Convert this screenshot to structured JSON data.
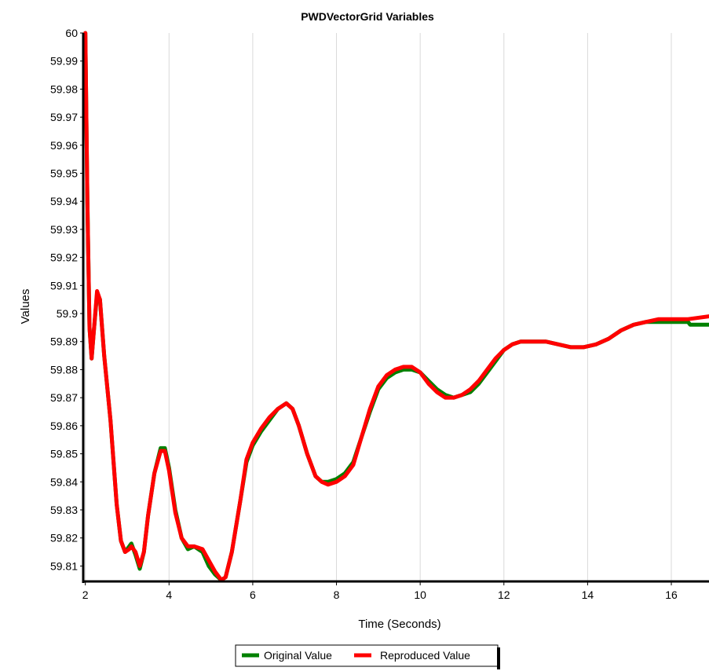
{
  "chart_data": {
    "type": "line",
    "title": "PWDVectorGrid Variables",
    "xlabel": "Time (Seconds)",
    "ylabel": "Values",
    "xlim": [
      1.95,
      16.9
    ],
    "ylim": [
      59.8045,
      60.0
    ],
    "x_ticks": [
      "2",
      "4",
      "6",
      "8",
      "10",
      "12",
      "14",
      "16"
    ],
    "y_ticks": [
      "59.81",
      "59.82",
      "59.83",
      "59.84",
      "59.85",
      "59.86",
      "59.87",
      "59.88",
      "59.89",
      "59.9",
      "59.91",
      "59.92",
      "59.93",
      "59.94",
      "59.95",
      "59.96",
      "59.97",
      "59.98",
      "59.99",
      "60"
    ],
    "grid": "vertical",
    "legend": "bottom-center",
    "series": [
      {
        "name": "Original Value",
        "color": "#008000",
        "points": [
          [
            2.0,
            60.0
          ],
          [
            2.05,
            59.94
          ],
          [
            2.1,
            59.895
          ],
          [
            2.15,
            59.884
          ],
          [
            2.2,
            59.893
          ],
          [
            2.28,
            59.907
          ],
          [
            2.35,
            59.905
          ],
          [
            2.45,
            59.885
          ],
          [
            2.6,
            59.862
          ],
          [
            2.75,
            59.832
          ],
          [
            2.85,
            59.819
          ],
          [
            2.95,
            59.815
          ],
          [
            3.05,
            59.817
          ],
          [
            3.1,
            59.818
          ],
          [
            3.2,
            59.814
          ],
          [
            3.3,
            59.809
          ],
          [
            3.4,
            59.815
          ],
          [
            3.5,
            59.828
          ],
          [
            3.65,
            59.843
          ],
          [
            3.8,
            59.852
          ],
          [
            3.9,
            59.852
          ],
          [
            4.0,
            59.845
          ],
          [
            4.15,
            59.83
          ],
          [
            4.3,
            59.82
          ],
          [
            4.45,
            59.816
          ],
          [
            4.6,
            59.817
          ],
          [
            4.8,
            59.815
          ],
          [
            4.95,
            59.81
          ],
          [
            5.1,
            59.807
          ],
          [
            5.25,
            59.805
          ],
          [
            5.35,
            59.806
          ],
          [
            5.5,
            59.815
          ],
          [
            5.7,
            59.833
          ],
          [
            5.85,
            59.847
          ],
          [
            6.0,
            59.853
          ],
          [
            6.2,
            59.858
          ],
          [
            6.4,
            59.862
          ],
          [
            6.6,
            59.866
          ],
          [
            6.8,
            59.868
          ],
          [
            6.95,
            59.866
          ],
          [
            7.1,
            59.86
          ],
          [
            7.3,
            59.85
          ],
          [
            7.5,
            59.842
          ],
          [
            7.65,
            59.84
          ],
          [
            7.8,
            59.84
          ],
          [
            8.0,
            59.841
          ],
          [
            8.2,
            59.843
          ],
          [
            8.4,
            59.847
          ],
          [
            8.6,
            59.856
          ],
          [
            8.8,
            59.865
          ],
          [
            9.0,
            59.873
          ],
          [
            9.2,
            59.877
          ],
          [
            9.4,
            59.879
          ],
          [
            9.6,
            59.88
          ],
          [
            9.8,
            59.88
          ],
          [
            10.0,
            59.879
          ],
          [
            10.2,
            59.876
          ],
          [
            10.4,
            59.873
          ],
          [
            10.6,
            59.871
          ],
          [
            10.8,
            59.87
          ],
          [
            11.0,
            59.871
          ],
          [
            11.2,
            59.872
          ],
          [
            11.4,
            59.875
          ],
          [
            11.6,
            59.879
          ],
          [
            11.8,
            59.883
          ],
          [
            12.0,
            59.887
          ],
          [
            12.2,
            59.889
          ],
          [
            12.4,
            59.89
          ],
          [
            12.8,
            59.89
          ],
          [
            13.0,
            59.89
          ],
          [
            13.3,
            59.889
          ],
          [
            13.6,
            59.888
          ],
          [
            13.9,
            59.888
          ],
          [
            14.2,
            59.889
          ],
          [
            14.5,
            59.891
          ],
          [
            14.8,
            59.894
          ],
          [
            15.1,
            59.896
          ],
          [
            15.4,
            59.897
          ],
          [
            15.7,
            59.897
          ],
          [
            16.0,
            59.897
          ],
          [
            16.4,
            59.897
          ],
          [
            16.45,
            59.896
          ],
          [
            16.9,
            59.896
          ]
        ]
      },
      {
        "name": "Reproduced Value",
        "color": "#ff0000",
        "points": [
          [
            2.0,
            60.0
          ],
          [
            2.05,
            59.94
          ],
          [
            2.1,
            59.895
          ],
          [
            2.15,
            59.884
          ],
          [
            2.2,
            59.893
          ],
          [
            2.28,
            59.908
          ],
          [
            2.35,
            59.905
          ],
          [
            2.45,
            59.885
          ],
          [
            2.6,
            59.862
          ],
          [
            2.75,
            59.832
          ],
          [
            2.85,
            59.819
          ],
          [
            2.95,
            59.815
          ],
          [
            3.05,
            59.816
          ],
          [
            3.1,
            59.817
          ],
          [
            3.2,
            59.815
          ],
          [
            3.3,
            59.81
          ],
          [
            3.4,
            59.815
          ],
          [
            3.5,
            59.828
          ],
          [
            3.65,
            59.843
          ],
          [
            3.8,
            59.851
          ],
          [
            3.9,
            59.851
          ],
          [
            4.0,
            59.844
          ],
          [
            4.15,
            59.829
          ],
          [
            4.3,
            59.82
          ],
          [
            4.45,
            59.817
          ],
          [
            4.6,
            59.817
          ],
          [
            4.8,
            59.816
          ],
          [
            4.95,
            59.812
          ],
          [
            5.1,
            59.808
          ],
          [
            5.25,
            59.805
          ],
          [
            5.35,
            59.806
          ],
          [
            5.5,
            59.815
          ],
          [
            5.7,
            59.833
          ],
          [
            5.85,
            59.848
          ],
          [
            6.0,
            59.854
          ],
          [
            6.2,
            59.859
          ],
          [
            6.4,
            59.863
          ],
          [
            6.6,
            59.866
          ],
          [
            6.8,
            59.868
          ],
          [
            6.95,
            59.866
          ],
          [
            7.1,
            59.86
          ],
          [
            7.3,
            59.85
          ],
          [
            7.5,
            59.842
          ],
          [
            7.65,
            59.84
          ],
          [
            7.8,
            59.839
          ],
          [
            8.0,
            59.84
          ],
          [
            8.2,
            59.842
          ],
          [
            8.4,
            59.846
          ],
          [
            8.6,
            59.856
          ],
          [
            8.8,
            59.866
          ],
          [
            9.0,
            59.874
          ],
          [
            9.2,
            59.878
          ],
          [
            9.4,
            59.88
          ],
          [
            9.6,
            59.881
          ],
          [
            9.8,
            59.881
          ],
          [
            10.0,
            59.879
          ],
          [
            10.2,
            59.875
          ],
          [
            10.4,
            59.872
          ],
          [
            10.6,
            59.87
          ],
          [
            10.8,
            59.87
          ],
          [
            11.0,
            59.871
          ],
          [
            11.2,
            59.873
          ],
          [
            11.4,
            59.876
          ],
          [
            11.6,
            59.88
          ],
          [
            11.8,
            59.884
          ],
          [
            12.0,
            59.887
          ],
          [
            12.2,
            59.889
          ],
          [
            12.4,
            59.89
          ],
          [
            12.8,
            59.89
          ],
          [
            13.0,
            59.89
          ],
          [
            13.3,
            59.889
          ],
          [
            13.6,
            59.888
          ],
          [
            13.9,
            59.888
          ],
          [
            14.2,
            59.889
          ],
          [
            14.5,
            59.891
          ],
          [
            14.8,
            59.894
          ],
          [
            15.1,
            59.896
          ],
          [
            15.4,
            59.897
          ],
          [
            15.7,
            59.898
          ],
          [
            16.0,
            59.898
          ],
          [
            16.4,
            59.898
          ],
          [
            16.9,
            59.899
          ]
        ]
      }
    ]
  }
}
